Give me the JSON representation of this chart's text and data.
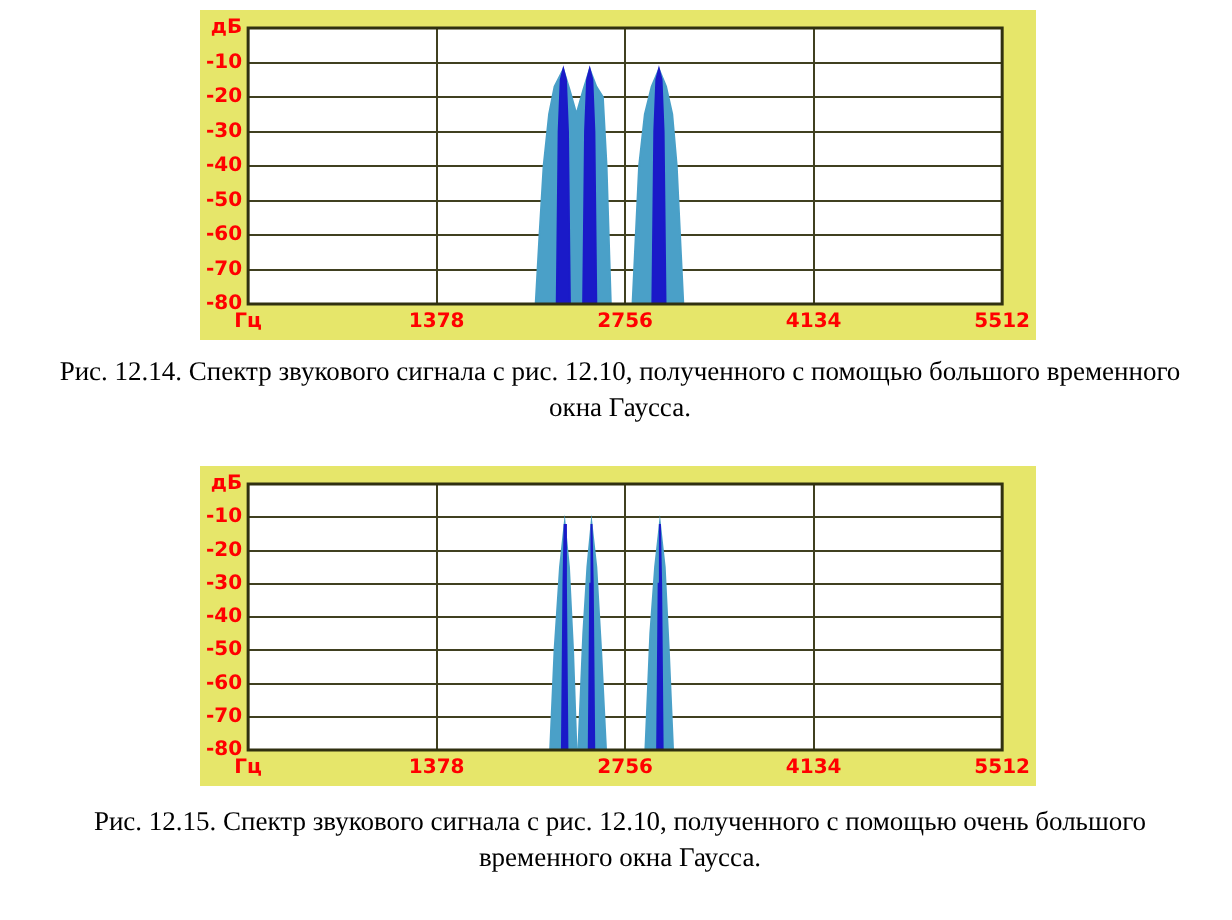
{
  "chart_data": [
    {
      "type": "area",
      "xlim": [
        0,
        5512
      ],
      "xticks": [
        {
          "value": 0,
          "label": "Гц"
        },
        1378,
        2756,
        4134,
        5512
      ],
      "ylim": [
        -80,
        0
      ],
      "yticks": [
        {
          "value": 0,
          "label": "дБ"
        },
        -10,
        -20,
        -30,
        -40,
        -50,
        -60,
        -70,
        -80
      ],
      "grid": true,
      "series": [
        {
          "color": "#4aa0c8",
          "x": [
            2102,
            2130,
            2160,
            2200,
            2240,
            2304,
            2350,
            2400,
            2450,
            2497,
            2545,
            2593,
            2620,
            2651,
            2810,
            2858,
            2900,
            2950,
            3003,
            3055,
            3100,
            3133,
            3181
          ],
          "values": [
            -80,
            -60,
            -40,
            -25,
            -17,
            -12,
            -18,
            -25,
            -18,
            -12,
            -17,
            -20,
            -40,
            -80,
            -80,
            -40,
            -25,
            -17,
            -12,
            -17,
            -25,
            -40,
            -80
          ]
        },
        {
          "color": "#1a1ac8",
          "x": [
            2256,
            2270,
            2285,
            2304,
            2323,
            2338,
            2352,
            2449,
            2463,
            2478,
            2497,
            2516,
            2531,
            2545,
            2955,
            2969,
            2984,
            3003,
            3022,
            3037,
            3051
          ],
          "values": [
            -80,
            -30,
            -15,
            -12,
            -15,
            -30,
            -80,
            -80,
            -30,
            -15,
            -12,
            -15,
            -30,
            -80,
            -80,
            -30,
            -15,
            -12,
            -15,
            -30,
            -80
          ]
        }
      ],
      "annotations": [
        "Рис. 12.14. Спектр звукового сигнала с рис. 12.10, полученного с помощью большого временного окна Гаусса."
      ]
    },
    {
      "type": "area",
      "xlim": [
        0,
        5512
      ],
      "xticks": [
        {
          "value": 0,
          "label": "Гц"
        },
        1378,
        2756,
        4134,
        5512
      ],
      "ylim": [
        -80,
        0
      ],
      "yticks": [
        {
          "value": 0,
          "label": "дБ"
        },
        -10,
        -20,
        -30,
        -40,
        -50,
        -60,
        -70,
        -80
      ],
      "grid": true,
      "series": [
        {
          "color": "#4aa0c8",
          "x": [
            2208,
            2240,
            2280,
            2314,
            2345,
            2375,
            2400,
            2414,
            2450,
            2480,
            2510,
            2545,
            2580,
            2616,
            2904,
            2940,
            2975,
            3010,
            3045,
            3075,
            3106
          ],
          "values": [
            -80,
            -50,
            -25,
            -12,
            -25,
            -50,
            -80,
            -80,
            -45,
            -25,
            -12,
            -25,
            -50,
            -80,
            -80,
            -45,
            -25,
            -12,
            -25,
            -50,
            -80
          ]
        },
        {
          "color": "#1a1ac8",
          "x": [
            2294,
            2305,
            2314,
            2323,
            2334,
            2490,
            2501,
            2510,
            2519,
            2530,
            2990,
            3001,
            3010,
            3019,
            3030
          ],
          "values": [
            -80,
            -30,
            -12,
            -30,
            -80,
            -80,
            -30,
            -12,
            -30,
            -80,
            -80,
            -30,
            -12,
            -30,
            -80
          ]
        }
      ],
      "annotations": [
        "Рис. 12.15. Спектр звукового сигнала с рис. 12.10, полученного с помощью очень большого временного окна Гаусса."
      ]
    }
  ]
}
